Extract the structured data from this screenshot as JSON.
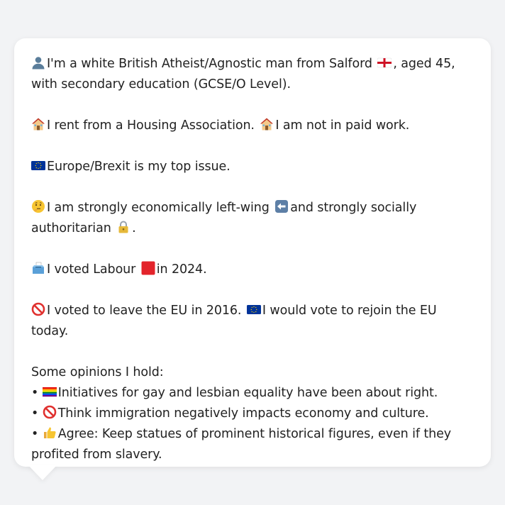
{
  "profile": {
    "p1": {
      "text_a": "I'm a white British Atheist/Agnostic man from Salford",
      "text_b": ", aged 45, with secondary education (GCSE/O Level)."
    },
    "p2": {
      "text_a": "I rent from a Housing Association.",
      "text_b": "I am not in paid work."
    },
    "p3": {
      "text": "Europe/Brexit is my top issue."
    },
    "p4": {
      "text_a": "I am strongly economically left-wing",
      "text_b": "and strongly socially authoritarian",
      "text_c": "."
    },
    "p5": {
      "text_a": "I voted Labour",
      "text_b": "in 2024."
    },
    "p6": {
      "text_a": "I voted to leave the EU in 2016.",
      "text_b": "I would vote to rejoin the EU today."
    },
    "opinions": {
      "heading": "Some opinions I hold:",
      "bullet": "•",
      "items": [
        {
          "text": "Initiatives for gay and lesbian equality have been about right."
        },
        {
          "text": "Think immigration negatively impacts economy and culture."
        },
        {
          "text": "Agree: Keep statues of prominent historical figures, even if they profited from slavery."
        }
      ]
    }
  },
  "icons": {
    "person": "person-silhouette-icon",
    "england_flag": "england-flag-icon",
    "house": "house-icon",
    "eu_flag": "eu-flag-icon",
    "thinking": "thinking-face-icon",
    "left_arrow": "left-arrow-icon",
    "lock": "lock-icon",
    "ballot": "ballot-box-icon",
    "red_square": "red-square-icon",
    "prohibited": "prohibited-icon",
    "rainbow_flag": "rainbow-flag-icon",
    "thumbs_up": "thumbs-up-icon"
  },
  "colors": {
    "background": "#f2f3f5",
    "bubble": "#ffffff",
    "text": "#222222",
    "labour_red": "#e3242b",
    "eu_blue": "#003399"
  }
}
